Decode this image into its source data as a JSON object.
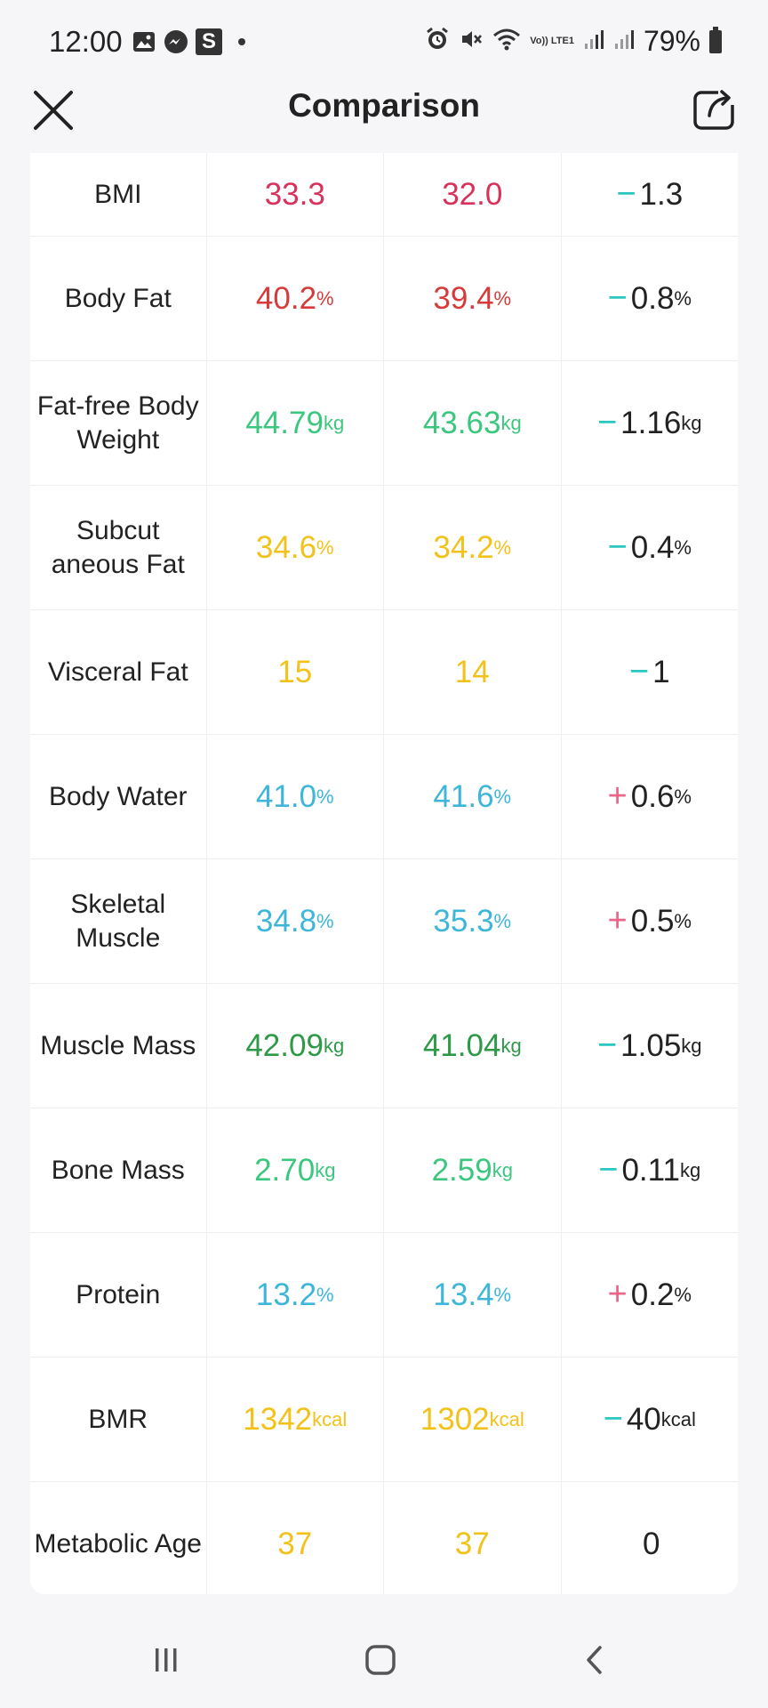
{
  "status_bar": {
    "time": "12:00",
    "battery": "79%",
    "icons_left": [
      "gallery-icon",
      "messenger-icon",
      "s-app-icon"
    ],
    "icons_right": [
      "alarm-icon",
      "mute-icon",
      "wifi-icon",
      "volte-icon",
      "signal-icon",
      "signal-icon"
    ],
    "volte_label": "Vo)) LTE1"
  },
  "header": {
    "title": "Comparison"
  },
  "colors": {
    "red": "#d8315b",
    "red_dark": "#d63a3a",
    "green_light": "#3cc77f",
    "green_dark": "#2e9a48",
    "yellow": "#f2c21a",
    "blue": "#3db6da",
    "minus": "#2ac7c2",
    "plus": "#ee6687"
  },
  "rows": [
    {
      "label": "BMI",
      "v1": "33.3",
      "u1": "",
      "v2": "32.0",
      "u2": "",
      "sign": "−",
      "diff": "1.3",
      "ud": ""
    },
    {
      "label": "Body Fat",
      "v1": "40.2",
      "u1": "%",
      "v2": "39.4",
      "u2": "%",
      "sign": "−",
      "diff": "0.8",
      "ud": "%"
    },
    {
      "label": "Fat-free Body Weight",
      "v1": "44.79",
      "u1": "kg",
      "v2": "43.63",
      "u2": "kg",
      "sign": "−",
      "diff": "1.16",
      "ud": "kg"
    },
    {
      "label": "Subcut aneous Fat",
      "v1": "34.6",
      "u1": "%",
      "v2": "34.2",
      "u2": "%",
      "sign": "−",
      "diff": "0.4",
      "ud": "%"
    },
    {
      "label": "Visceral Fat",
      "v1": "15",
      "u1": "",
      "v2": "14",
      "u2": "",
      "sign": "−",
      "diff": "1",
      "ud": ""
    },
    {
      "label": "Body Water",
      "v1": "41.0",
      "u1": "%",
      "v2": "41.6",
      "u2": "%",
      "sign": "+",
      "diff": "0.6",
      "ud": "%"
    },
    {
      "label": "Skeletal Muscle",
      "v1": "34.8",
      "u1": "%",
      "v2": "35.3",
      "u2": "%",
      "sign": "+",
      "diff": "0.5",
      "ud": "%"
    },
    {
      "label": "Muscle Mass",
      "v1": "42.09",
      "u1": "kg",
      "v2": "41.04",
      "u2": "kg",
      "sign": "−",
      "diff": "1.05",
      "ud": "kg"
    },
    {
      "label": "Bone Mass",
      "v1": "2.70",
      "u1": "kg",
      "v2": "2.59",
      "u2": "kg",
      "sign": "−",
      "diff": "0.11",
      "ud": "kg"
    },
    {
      "label": "Protein",
      "v1": "13.2",
      "u1": "%",
      "v2": "13.4",
      "u2": "%",
      "sign": "+",
      "diff": "0.2",
      "ud": "%"
    },
    {
      "label": "BMR",
      "v1": "1342",
      "u1": "kcal",
      "v2": "1302",
      "u2": "kcal",
      "sign": "−",
      "diff": "40",
      "ud": "kcal"
    },
    {
      "label": "Metabolic Age",
      "v1": "37",
      "u1": "",
      "v2": "37",
      "u2": "",
      "sign": "",
      "diff": "0",
      "ud": ""
    }
  ],
  "row_colors": [
    "#d8315b",
    "#d63a3a",
    "#3cc77f",
    "#f2c21a",
    "#f2c21a",
    "#3db6da",
    "#3db6da",
    "#2e9a48",
    "#3cc77f",
    "#3db6da",
    "#f2c21a",
    "#f2c21a"
  ],
  "navbar": {
    "buttons": [
      "recent-apps-button",
      "home-button",
      "back-button"
    ]
  }
}
